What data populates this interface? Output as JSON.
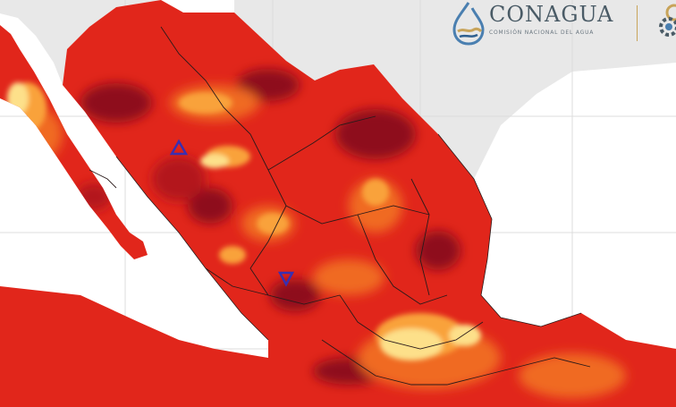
{
  "map": {
    "region": "Mexico",
    "layer": "temperature heat map",
    "palette": {
      "ocean": "#ffffff",
      "neighbor_land": "#e8e8e8",
      "graticule": "#dcdcdc",
      "base": "#e1261b",
      "deep": "#8e0a1a",
      "dark": "#b3121d",
      "orange": "#f06a22",
      "amber": "#f9a23a",
      "yellow": "#fde08a",
      "pale_green": "#d9efc4",
      "border": "#2a1a1a",
      "marker": "#3a2fb0"
    },
    "markers": [
      {
        "name": "marker-sonora-chihuahua",
        "symbol": "triangle-up"
      },
      {
        "name": "marker-jalisco",
        "symbol": "triangle-down"
      }
    ]
  },
  "branding": {
    "title": "CONAGUA",
    "subtitle": "COMISIÓN NACIONAL DEL AGUA",
    "accent_color": "#c8a45a",
    "logo_icon": "water-drop-icon",
    "secondary_icon": "partial-seal-icon"
  }
}
